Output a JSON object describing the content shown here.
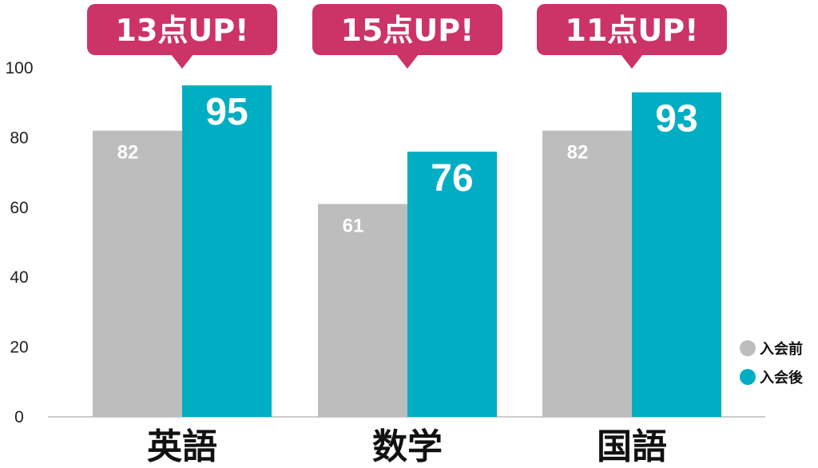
{
  "chart_data": {
    "type": "bar",
    "categories": [
      "英語",
      "数学",
      "国語"
    ],
    "series": [
      {
        "name": "入会前",
        "values": [
          82,
          61,
          82
        ],
        "color": "#bdbdbd"
      },
      {
        "name": "入会後",
        "values": [
          95,
          76,
          93
        ],
        "color": "#00aec3"
      }
    ],
    "annotations": [
      "13点UP!",
      "15点UP!",
      "11点UP!"
    ],
    "annotation_color": "#cc3366",
    "y_ticks": [
      "0",
      "20",
      "40",
      "60",
      "80",
      "100"
    ],
    "ylim": [
      0,
      100
    ],
    "grid": false,
    "legend_position": "bottom-right",
    "xlabel": "",
    "ylabel": "",
    "title": ""
  }
}
